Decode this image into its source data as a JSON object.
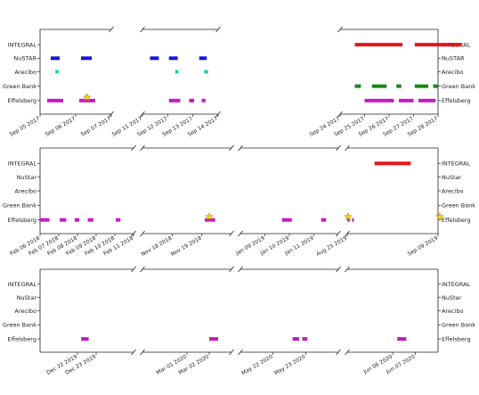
{
  "chart_data": {
    "type": "broken-axis-timeline",
    "rows": [
      "INTEGRAL",
      "NuSTAR",
      "Arecibo",
      "Green Bank",
      "Effelsberg"
    ],
    "row_labels_by_panel": [
      [
        "INTEGRAL",
        "NuSTAR",
        "Arecibo",
        "Green Bank",
        "Effelsberg"
      ],
      [
        "INTEGRAL",
        "NuStar",
        "Arecibo",
        "Green Bank",
        "Effelsberg"
      ],
      [
        "INTEGRAL",
        "NuStar",
        "Arecibo",
        "Green Bank",
        "Effelsberg"
      ]
    ],
    "colors": {
      "INTEGRAL": "#e8141b",
      "NuSTAR": "#1515d8",
      "Arecibo": "#1cc4c4",
      "Green Bank": "#138a13",
      "Effelsberg": "#c21ac2",
      "burst_star": "#f5d414"
    },
    "panels": [
      {
        "segments": [
          {
            "range": [
              "2017-09-05",
              "2017-09-07"
            ],
            "ticks": [
              [
                "2017-09-05",
                "Sep 05 2017"
              ],
              [
                "2017-09-06",
                "Sep 06 2017"
              ],
              [
                "2017-09-07",
                "Sep 07 2017"
              ]
            ],
            "obs": [
              {
                "row": "NuSTAR",
                "start": "2017-09-05.30",
                "end": "2017-09-05.55"
              },
              {
                "row": "NuSTAR",
                "start": "2017-09-06.15",
                "end": "2017-09-06.45"
              },
              {
                "row": "Arecibo",
                "start": "2017-09-05.43",
                "end": "2017-09-05.52"
              },
              {
                "row": "Effelsberg",
                "start": "2017-09-05.20",
                "end": "2017-09-05.65"
              },
              {
                "row": "Effelsberg",
                "start": "2017-09-06.10",
                "end": "2017-09-06.55"
              }
            ],
            "bursts": [
              {
                "row": "Effelsberg",
                "t": "2017-09-06.32"
              }
            ]
          },
          {
            "range": [
              "2017-09-11",
              "2017-09-14"
            ],
            "ticks": [
              [
                "2017-09-11",
                "Sep 11 2017"
              ],
              [
                "2017-09-12",
                "Sep 12 2017"
              ],
              [
                "2017-09-13",
                "Sep 13 2017"
              ],
              [
                "2017-09-14",
                "Sep 14 2017"
              ]
            ],
            "obs": [
              {
                "row": "NuSTAR",
                "start": "2017-09-11.30",
                "end": "2017-09-11.65"
              },
              {
                "row": "NuSTAR",
                "start": "2017-09-12.05",
                "end": "2017-09-12.40"
              },
              {
                "row": "NuSTAR",
                "start": "2017-09-13.25",
                "end": "2017-09-13.55"
              },
              {
                "row": "Arecibo",
                "start": "2017-09-12.30",
                "end": "2017-09-12.42"
              },
              {
                "row": "Arecibo",
                "start": "2017-09-13.45",
                "end": "2017-09-13.60"
              },
              {
                "row": "Effelsberg",
                "start": "2017-09-12.05",
                "end": "2017-09-12.50"
              },
              {
                "row": "Effelsberg",
                "start": "2017-09-12.85",
                "end": "2017-09-13.05"
              },
              {
                "row": "Effelsberg",
                "start": "2017-09-13.35",
                "end": "2017-09-13.50"
              }
            ],
            "bursts": []
          },
          {
            "range": [
              "2017-09-24",
              "2017-09-28"
            ],
            "ticks": [
              [
                "2017-09-24",
                "Sep 24 2017"
              ],
              [
                "2017-09-25",
                "Sep 25 2017"
              ],
              [
                "2017-09-26",
                "Sep 26 2017"
              ],
              [
                "2017-09-27",
                "Sep 27 2017"
              ],
              [
                "2017-09-28",
                "Sep 28 2017"
              ]
            ],
            "obs": [
              {
                "row": "INTEGRAL",
                "start": "2017-09-24.60",
                "end": "2017-09-26.55"
              },
              {
                "row": "INTEGRAL",
                "start": "2017-09-27.05",
                "end": "2017-09-28.95"
              },
              {
                "row": "Green Bank",
                "start": "2017-09-24.60",
                "end": "2017-09-24.85"
              },
              {
                "row": "Green Bank",
                "start": "2017-09-25.30",
                "end": "2017-09-25.90"
              },
              {
                "row": "Green Bank",
                "start": "2017-09-26.30",
                "end": "2017-09-26.50"
              },
              {
                "row": "Green Bank",
                "start": "2017-09-27.05",
                "end": "2017-09-27.60"
              },
              {
                "row": "Green Bank",
                "start": "2017-09-27.80",
                "end": "2017-09-28.00"
              },
              {
                "row": "Effelsberg",
                "start": "2017-09-25.00",
                "end": "2017-09-26.20"
              },
              {
                "row": "Effelsberg",
                "start": "2017-09-26.40",
                "end": "2017-09-27.00"
              },
              {
                "row": "Effelsberg",
                "start": "2017-09-27.20",
                "end": "2017-09-27.90"
              }
            ],
            "bursts": []
          }
        ]
      },
      {
        "segments": [
          {
            "range": [
              "2018-02-06",
              "2018-02-11"
            ],
            "ticks": [
              [
                "2018-02-06",
                "Feb 06 2018"
              ],
              [
                "2018-02-07",
                "Feb 07 2018"
              ],
              [
                "2018-02-08",
                "Feb 08 2018"
              ],
              [
                "2018-02-09",
                "Feb 09 2018"
              ],
              [
                "2018-02-10",
                "Feb 10 2018"
              ],
              [
                "2018-02-11",
                "Feb 11 2018"
              ]
            ],
            "obs": [
              {
                "row": "Effelsberg",
                "start": "2018-02-06.00",
                "end": "2018-02-06.50"
              },
              {
                "row": "Effelsberg",
                "start": "2018-02-07.05",
                "end": "2018-02-07.40"
              },
              {
                "row": "Effelsberg",
                "start": "2018-02-07.85",
                "end": "2018-02-08.10"
              },
              {
                "row": "Effelsberg",
                "start": "2018-02-08.55",
                "end": "2018-02-08.85"
              },
              {
                "row": "Effelsberg",
                "start": "2018-02-10.05",
                "end": "2018-02-10.30"
              }
            ],
            "bursts": []
          },
          {
            "range": [
              "2018-11-17",
              "2018-11-20"
            ],
            "ticks": [
              [
                "2018-11-18",
                "Nov 18 2018"
              ],
              [
                "2018-11-19",
                "Nov 19 2018"
              ]
            ],
            "obs": [
              {
                "row": "Effelsberg",
                "start": "2018-11-19.10",
                "end": "2018-11-19.45"
              }
            ],
            "bursts": [
              {
                "row": "Effelsberg",
                "t": "2018-11-19.25"
              }
            ]
          },
          {
            "range": [
              "2019-01-08",
              "2019-01-12"
            ],
            "ticks": [
              [
                "2019-01-09",
                "Jan 09 2019"
              ],
              [
                "2019-01-10",
                "Jan 10 2019"
              ],
              [
                "2019-01-11",
                "Jan 11 2019"
              ]
            ],
            "obs": [
              {
                "row": "Effelsberg",
                "start": "2019-01-09.70",
                "end": "2019-01-10.10"
              },
              {
                "row": "Effelsberg",
                "start": "2019-01-11.30",
                "end": "2019-01-11.50"
              }
            ],
            "bursts": []
          },
          {
            "range": [
              "2019-08-25",
              "2019-09-09"
            ],
            "ticks": [
              [
                "2019-08-25",
                "Aug 25 2019"
              ],
              [
                "2019-09-09",
                "Sep 09 2019"
              ]
            ],
            "obs": [
              {
                "row": "INTEGRAL",
                "start": "2019-08-29.50",
                "end": "2019-09-04.50"
              },
              {
                "row": "Effelsberg",
                "start": "2019-08-25.00",
                "end": "2019-08-25.40"
              },
              {
                "row": "Effelsberg",
                "start": "2019-08-25.80",
                "end": "2019-08-26.10"
              }
            ],
            "bursts": [
              {
                "row": "Effelsberg",
                "t": "2019-08-25.15"
              },
              {
                "row": "Effelsberg",
                "t": "2019-09-09.30"
              }
            ]
          }
        ]
      },
      {
        "segments": [
          {
            "range": [
              "2019-12-20",
              "2019-12-25"
            ],
            "ticks": [
              [
                "2019-12-22",
                "Dec 22 2019"
              ],
              [
                "2019-12-23",
                "Dec 23 2019"
              ]
            ],
            "obs": [
              {
                "row": "Effelsberg",
                "start": "2019-12-22.20",
                "end": "2019-12-22.60"
              }
            ],
            "bursts": []
          },
          {
            "range": [
              "2020-02-28",
              "2020-03-03"
            ],
            "ticks": [
              [
                "2020-03-01",
                "Mar 01 2020"
              ],
              [
                "2020-03-02",
                "Mar 02 2020"
              ]
            ],
            "obs": [
              {
                "row": "Effelsberg",
                "start": "2020-03-02.00",
                "end": "2020-03-02.40"
              }
            ],
            "bursts": []
          },
          {
            "range": [
              "2020-05-21",
              "2020-05-24"
            ],
            "ticks": [
              [
                "2020-05-22",
                "May 22 2020"
              ],
              [
                "2020-05-23",
                "May 23 2020"
              ]
            ],
            "obs": [
              {
                "row": "Effelsberg",
                "start": "2020-05-22.60",
                "end": "2020-05-22.80"
              },
              {
                "row": "Effelsberg",
                "start": "2020-05-22.90",
                "end": "2020-05-23.05"
              }
            ],
            "bursts": []
          },
          {
            "range": [
              "2020-06-04",
              "2020-06-08"
            ],
            "ticks": [
              [
                "2020-06-06",
                "Jun 06 2020"
              ],
              [
                "2020-06-07",
                "Jun 07 2020"
              ]
            ],
            "obs": [
              {
                "row": "Effelsberg",
                "start": "2020-06-06.20",
                "end": "2020-06-06.60"
              }
            ],
            "bursts": []
          }
        ]
      }
    ]
  }
}
